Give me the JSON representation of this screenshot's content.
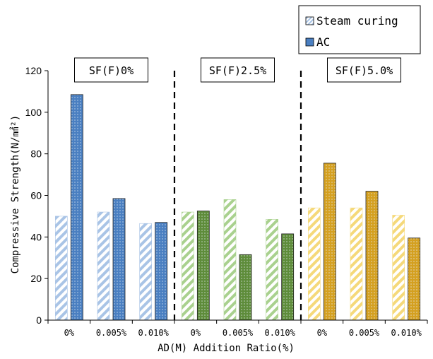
{
  "chart_data": {
    "type": "bar",
    "title": "",
    "xlabel": "AD(M) Addition Ratio(%)",
    "ylabel": "Compressive Strength(N/㎟²)",
    "ylim": [
      0,
      120
    ],
    "yticks": [
      0,
      20,
      40,
      60,
      80,
      100,
      120
    ],
    "grid": false,
    "legend_position": "top-right",
    "categories": [
      "0%",
      "0.005%",
      "0.010%",
      "0%",
      "0.005%",
      "0.010%",
      "0%",
      "0.005%",
      "0.010%"
    ],
    "groups": [
      {
        "label": "SF(F)0%",
        "categories": [
          "0%",
          "0.005%",
          "0.010%"
        ],
        "color": "#4a7fc1",
        "light": "#a9c4e6"
      },
      {
        "label": "SF(F)2.5%",
        "categories": [
          "0%",
          "0.005%",
          "0.010%"
        ],
        "color": "#5e8c3a",
        "light": "#a9d18e"
      },
      {
        "label": "SF(F)5.0%",
        "categories": [
          "0%",
          "0.005%",
          "0.010%"
        ],
        "color": "#d4a020",
        "light": "#f5d97a"
      }
    ],
    "series": [
      {
        "name": "Steam curing",
        "pattern": "diagonal-stripes",
        "values": [
          50,
          52,
          46.5,
          52,
          58,
          48.5,
          54,
          54,
          50.5
        ]
      },
      {
        "name": "AC",
        "pattern": "dots",
        "values": [
          108.5,
          58.5,
          47,
          52.5,
          31.5,
          41.5,
          75.5,
          62,
          39.5
        ]
      }
    ]
  }
}
